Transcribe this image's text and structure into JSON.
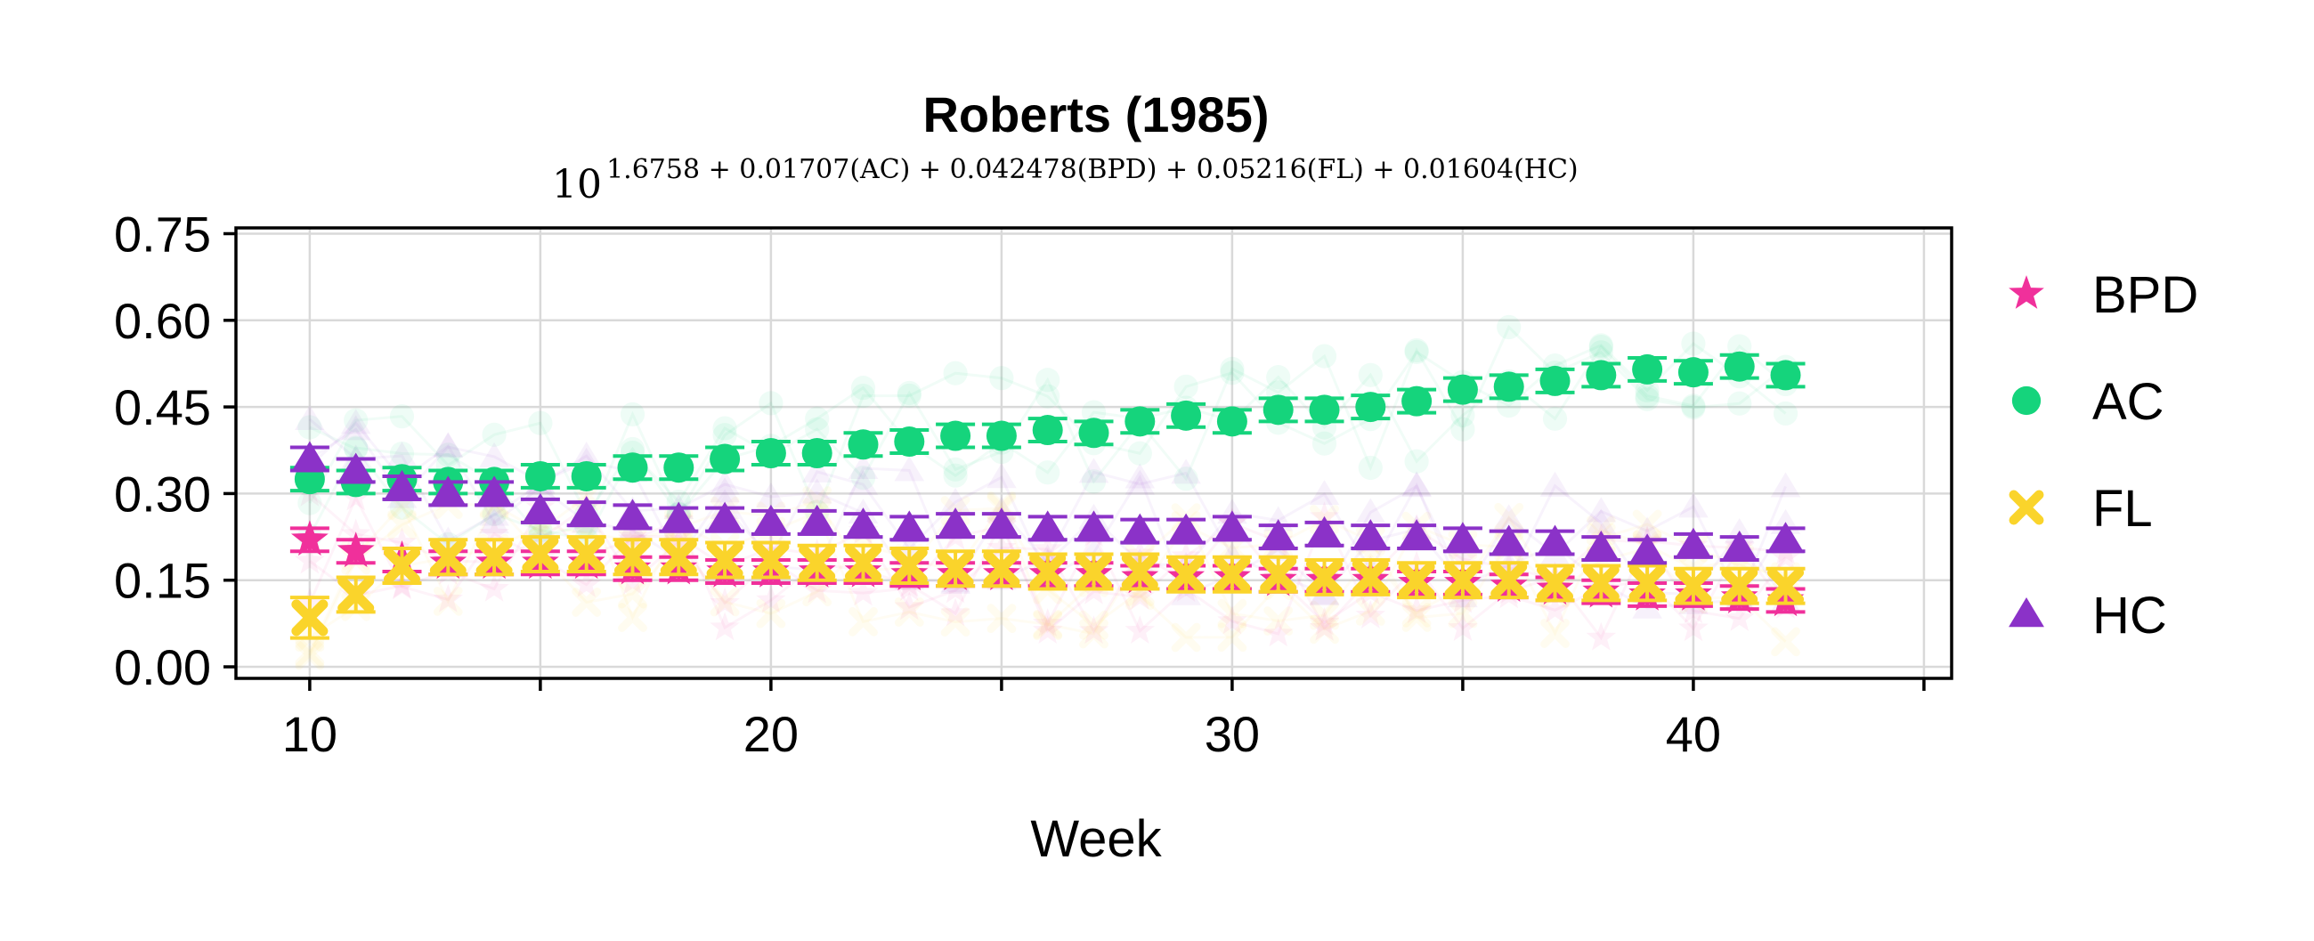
{
  "chart_data": {
    "type": "scatter",
    "title": "Roberts (1985)",
    "subtitle": {
      "base": "10",
      "exponent": "1.6758 + 0.01707(AC) + 0.042478(BPD) + 0.05216(FL) + 0.01604(HC)"
    },
    "xlabel": "Week",
    "ylabel": "",
    "xlim": [
      8.4,
      45.6
    ],
    "ylim": [
      -0.02,
      0.76
    ],
    "xticks": [
      10,
      20,
      30,
      40
    ],
    "xticks_minor": [
      15,
      25,
      35,
      45
    ],
    "yticks": [
      "0.00",
      "0.15",
      "0.30",
      "0.45",
      "0.60",
      "0.75"
    ],
    "ytick_values": [
      0,
      0.15,
      0.3,
      0.45,
      0.6,
      0.75
    ],
    "grid": true,
    "legend_position": "right",
    "x": [
      10,
      11,
      12,
      13,
      14,
      15,
      16,
      17,
      18,
      19,
      20,
      21,
      22,
      23,
      24,
      25,
      26,
      27,
      28,
      29,
      30,
      31,
      32,
      33,
      34,
      35,
      36,
      37,
      38,
      39,
      40,
      41,
      42
    ],
    "series": [
      {
        "name": "BPD",
        "color": "#f0309b",
        "marker": "star",
        "values": [
          0.22,
          0.2,
          0.185,
          0.18,
          0.18,
          0.18,
          0.18,
          0.17,
          0.17,
          0.165,
          0.165,
          0.165,
          0.165,
          0.16,
          0.16,
          0.16,
          0.16,
          0.16,
          0.155,
          0.155,
          0.155,
          0.15,
          0.15,
          0.15,
          0.145,
          0.145,
          0.14,
          0.135,
          0.13,
          0.125,
          0.125,
          0.12,
          0.115
        ],
        "err": [
          0.02,
          0.02,
          0.02,
          0.02,
          0.02,
          0.02,
          0.02,
          0.02,
          0.02,
          0.02,
          0.02,
          0.02,
          0.02,
          0.02,
          0.02,
          0.02,
          0.02,
          0.02,
          0.02,
          0.02,
          0.02,
          0.02,
          0.02,
          0.02,
          0.02,
          0.02,
          0.02,
          0.02,
          0.02,
          0.02,
          0.02,
          0.02,
          0.02
        ]
      },
      {
        "name": "AC",
        "color": "#15d47c",
        "marker": "circle",
        "values": [
          0.325,
          0.32,
          0.325,
          0.32,
          0.32,
          0.33,
          0.33,
          0.345,
          0.345,
          0.36,
          0.37,
          0.37,
          0.385,
          0.39,
          0.4,
          0.4,
          0.41,
          0.405,
          0.425,
          0.435,
          0.425,
          0.445,
          0.445,
          0.45,
          0.46,
          0.48,
          0.485,
          0.495,
          0.505,
          0.515,
          0.51,
          0.52,
          0.505
        ],
        "err": [
          0.02,
          0.02,
          0.02,
          0.02,
          0.02,
          0.02,
          0.02,
          0.02,
          0.02,
          0.02,
          0.02,
          0.02,
          0.02,
          0.02,
          0.02,
          0.02,
          0.02,
          0.02,
          0.02,
          0.02,
          0.02,
          0.02,
          0.02,
          0.02,
          0.02,
          0.02,
          0.02,
          0.02,
          0.02,
          0.02,
          0.02,
          0.02,
          0.02
        ]
      },
      {
        "name": "FL",
        "color": "#fad42b",
        "marker": "x",
        "values": [
          0.085,
          0.125,
          0.175,
          0.19,
          0.19,
          0.195,
          0.195,
          0.19,
          0.19,
          0.185,
          0.185,
          0.18,
          0.18,
          0.175,
          0.17,
          0.17,
          0.165,
          0.165,
          0.165,
          0.16,
          0.16,
          0.16,
          0.155,
          0.155,
          0.15,
          0.15,
          0.15,
          0.145,
          0.145,
          0.145,
          0.14,
          0.14,
          0.14
        ],
        "err": [
          0.035,
          0.03,
          0.03,
          0.03,
          0.03,
          0.03,
          0.03,
          0.03,
          0.03,
          0.03,
          0.03,
          0.03,
          0.03,
          0.03,
          0.03,
          0.03,
          0.03,
          0.03,
          0.03,
          0.03,
          0.03,
          0.03,
          0.03,
          0.03,
          0.03,
          0.03,
          0.03,
          0.03,
          0.03,
          0.03,
          0.03,
          0.03,
          0.03
        ]
      },
      {
        "name": "HC",
        "color": "#8b32c8",
        "marker": "triangle",
        "values": [
          0.36,
          0.34,
          0.31,
          0.3,
          0.3,
          0.27,
          0.265,
          0.26,
          0.255,
          0.255,
          0.25,
          0.25,
          0.245,
          0.24,
          0.245,
          0.245,
          0.24,
          0.24,
          0.235,
          0.235,
          0.24,
          0.225,
          0.23,
          0.225,
          0.225,
          0.22,
          0.215,
          0.215,
          0.205,
          0.2,
          0.21,
          0.205,
          0.22
        ],
        "err": [
          0.02,
          0.02,
          0.02,
          0.02,
          0.02,
          0.02,
          0.02,
          0.02,
          0.02,
          0.02,
          0.02,
          0.02,
          0.02,
          0.02,
          0.02,
          0.02,
          0.02,
          0.02,
          0.02,
          0.02,
          0.02,
          0.02,
          0.02,
          0.02,
          0.02,
          0.02,
          0.02,
          0.02,
          0.02,
          0.02,
          0.02,
          0.02,
          0.02
        ]
      }
    ]
  }
}
